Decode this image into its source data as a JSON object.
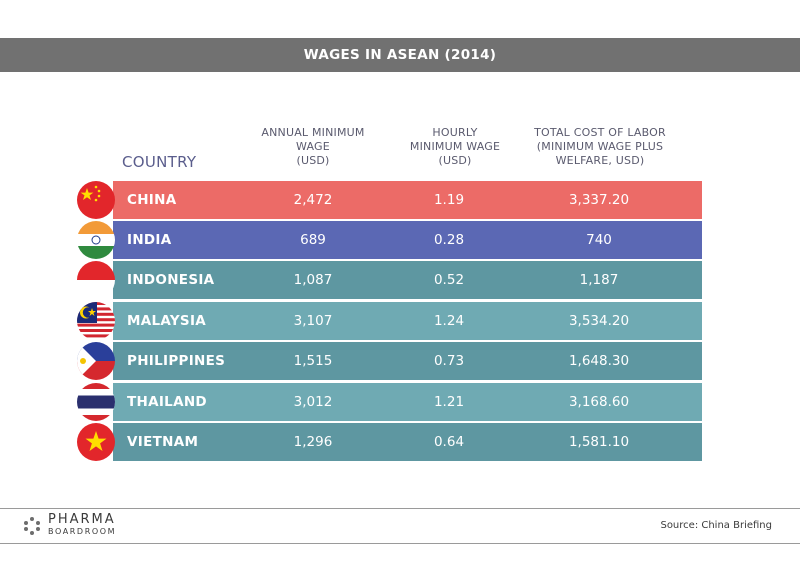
{
  "title": "WAGES IN ASEAN (2014)",
  "chart_data": {
    "type": "table",
    "title": "WAGES IN ASEAN (2014)",
    "columns": [
      "COUNTRY",
      "ANNUAL MINIMUM WAGE (USD)",
      "HOURLY MINIMUM WAGE (USD)",
      "TOTAL COST OF LABOR (MINIMUM WAGE PLUS WELFARE, USD)"
    ],
    "rows": [
      {
        "country": "CHINA",
        "annual": "2,472",
        "hourly": "1.19",
        "total": "3,337.20"
      },
      {
        "country": "INDIA",
        "annual": "689",
        "hourly": "0.28",
        "total": "740"
      },
      {
        "country": "INDONESIA",
        "annual": "1,087",
        "hourly": "0.52",
        "total": "1,187"
      },
      {
        "country": "MALAYSIA",
        "annual": "3,107",
        "hourly": "1.24",
        "total": "3,534.20"
      },
      {
        "country": "PHILIPPINES",
        "annual": "1,515",
        "hourly": "0.73",
        "total": "1,648.30"
      },
      {
        "country": "THAILAND",
        "annual": "3,012",
        "hourly": "1.21",
        "total": "3,168.60"
      },
      {
        "country": "VIETNAM",
        "annual": "1,296",
        "hourly": "0.64",
        "total": "1,581.10"
      }
    ]
  },
  "headers": {
    "country": "COUNTRY",
    "annual_line1": "ANNUAL MINIMUM",
    "annual_line2": "WAGE",
    "annual_line3": "(USD)",
    "hourly_line1": "HOURLY",
    "hourly_line2": "MINIMUM WAGE",
    "hourly_line3": "(USD)",
    "total_line1": "TOTAL COST OF LABOR",
    "total_line2": "(MINIMUM WAGE PLUS",
    "total_line3": "WELFARE, USD)"
  },
  "row_colors": [
    "#ec6b67",
    "#5b68b4",
    "#5e97a1",
    "#6faab3",
    "#5e97a1",
    "#6faab3",
    "#5e97a1"
  ],
  "flag_icons": [
    "china-flag-icon",
    "india-flag-icon",
    "indonesia-flag-icon",
    "malaysia-flag-icon",
    "philippines-flag-icon",
    "thailand-flag-icon",
    "vietnam-flag-icon"
  ],
  "logo": {
    "main": "PHARMA",
    "sub": "BOARDROOM"
  },
  "source": "Source: China Briefing"
}
